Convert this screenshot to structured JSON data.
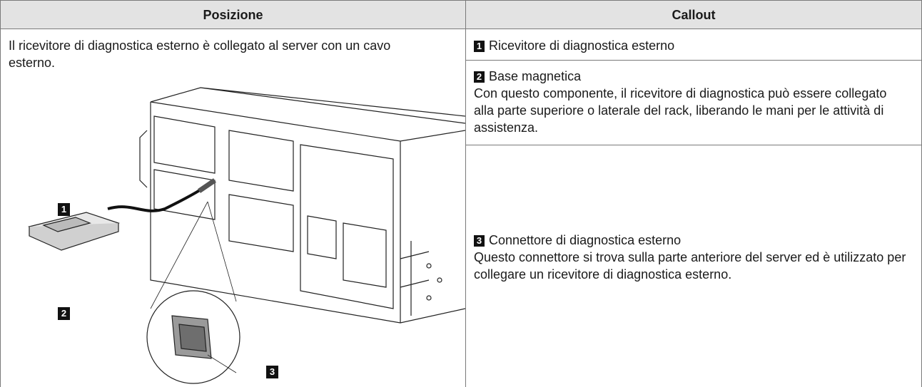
{
  "table": {
    "header": [
      "Posizione",
      "Callout"
    ],
    "description": "Il ricevitore di diagnostica esterno è collegato al server con un cavo esterno.",
    "callouts": [
      {
        "number": 1,
        "title": "Ricevitore di diagnostica esterno"
      },
      {
        "number": 2,
        "title": "Base magnetica",
        "text": "Con questo componente, il ricevitore di diagnostica può essere collegato alla parte superiore o laterale del rack, liberando le mani per le attività di assistenza."
      },
      {
        "number": 3,
        "title": "Connettore di diagnostica esterno",
        "text": "Questo connettore si trova sulla parte anteriore del server ed è utilizzato per collegare un ricevitore di diagnostica esterno."
      }
    ]
  }
}
